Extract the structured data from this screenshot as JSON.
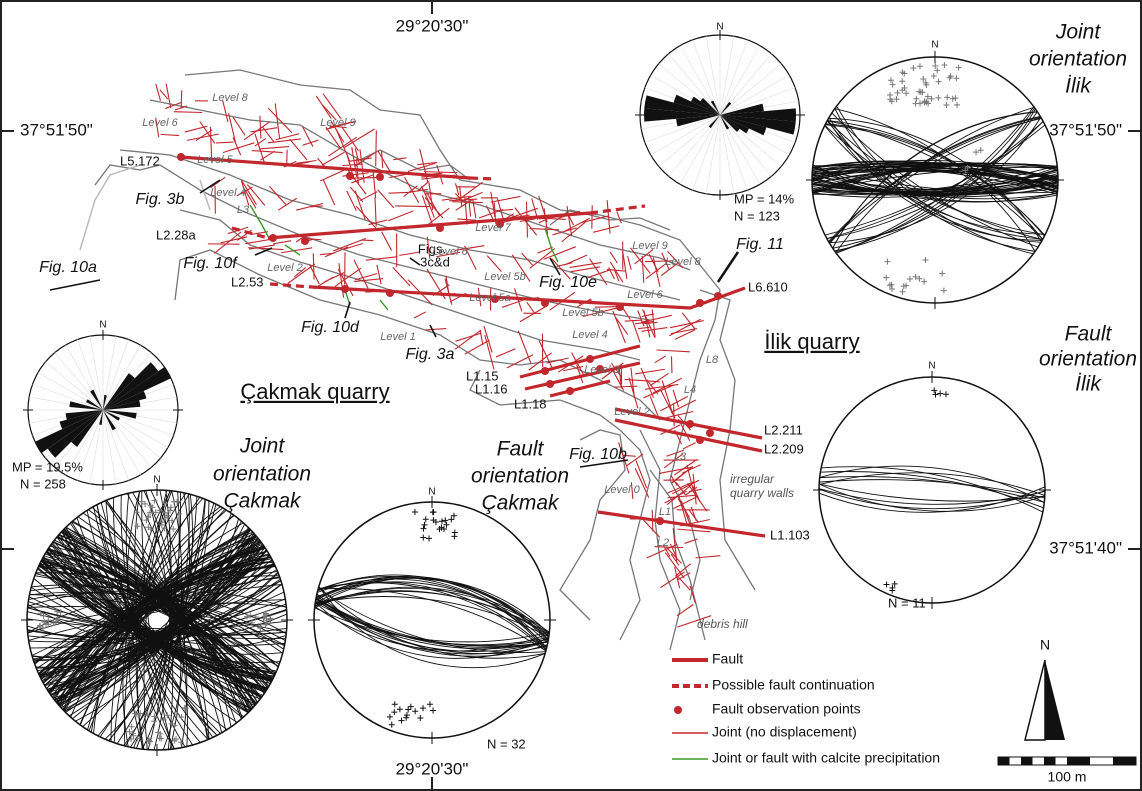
{
  "coordinates": {
    "top": "29°20'30\"",
    "bottom": "29°20'30\"",
    "left": "37°51'50\"",
    "right_upper": "37°51'50\"",
    "right_lower": "37°51'40\""
  },
  "stereonets": [
    {
      "title": [
        "Joint",
        "orientation",
        "İlik"
      ],
      "north": "N"
    },
    {
      "title": [
        "Fault",
        "orientation",
        "İlik"
      ],
      "north": "N",
      "count": "N = 11"
    },
    {
      "title": [
        "Joint",
        "orientation",
        "Çakmak"
      ],
      "north": "N"
    },
    {
      "title": [
        "Fault",
        "orientation",
        "Çakmak"
      ],
      "north": "N",
      "count": "N = 32"
    }
  ],
  "rose_diagrams": [
    {
      "north": "N",
      "max_percent": "MP = 14%",
      "count": "N = 123"
    },
    {
      "north": "N",
      "max_percent": "MP = 19.5%",
      "count": "N = 258"
    }
  ],
  "quarries": [
    "İlik quarry",
    "Çakmak quarry"
  ],
  "figure_refs": [
    "Fig. 3b",
    "Fig. 10a",
    "Fig. 10f",
    "Figs.",
    "3c&d",
    "Fig. 10e",
    "Fig. 11",
    "Fig. 10d",
    "Fig. 3a",
    "Fig. 10b"
  ],
  "observation_points": [
    "L5.172",
    "L2.28a",
    "L2.53",
    "L1.15",
    "L1.16",
    "L1.18",
    "L6.610",
    "L2.211",
    "L2.209",
    "L1.103"
  ],
  "levels": [
    "Level 8",
    "Level 6",
    "Level 9",
    "Level 5",
    "Level 4",
    "L3",
    "Level 7",
    "Level 2",
    "Level 6",
    "Level 5b",
    "Level 9",
    "Level 8",
    "Level 6",
    "Level 5a",
    "Level 5b",
    "Level 1",
    "Level 4",
    "Level 3",
    "Level 2",
    "Level 0",
    "L3",
    "L1",
    "L2",
    "L4",
    "L8"
  ],
  "notes": [
    "irregular",
    "quarry walls",
    "debris hill"
  ],
  "legend": [
    "Fault",
    "Possible fault continuation",
    "Fault observation points",
    "Joint (no displacement)",
    "Joint or fault with calcite precipitation"
  ],
  "scale": {
    "north": "N",
    "length": "100 m"
  }
}
